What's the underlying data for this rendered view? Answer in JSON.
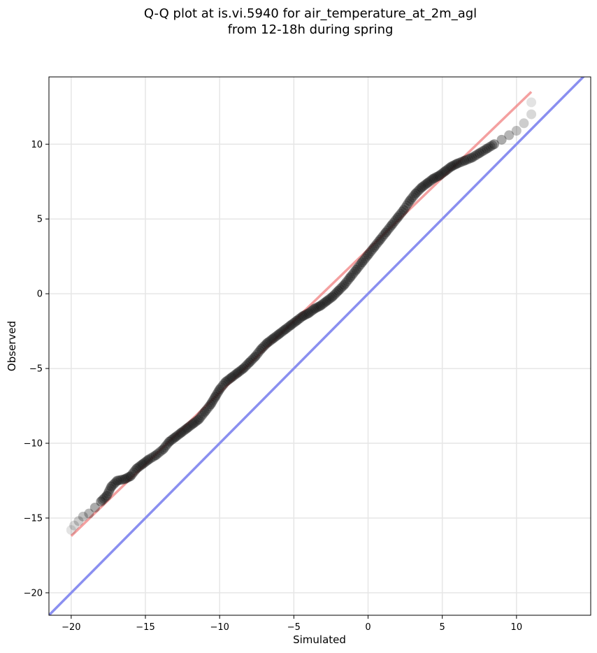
{
  "chart_data": {
    "type": "scatter",
    "title": "Q-Q plot at is.vi.5940 for air_temperature_at_2m_agl\nfrom 12-18h during spring",
    "title_lines": [
      "Q-Q plot at is.vi.5940 for air_temperature_at_2m_agl",
      "from 12-18h during spring"
    ],
    "xlabel": "Simulated",
    "ylabel": "Observed",
    "xlim": [
      -21.5,
      15
    ],
    "ylim": [
      -21.5,
      14.5
    ],
    "xticks": [
      -20,
      -15,
      -10,
      -5,
      0,
      5,
      10
    ],
    "yticks": [
      -20,
      -15,
      -10,
      -5,
      0,
      5,
      10
    ],
    "xtick_labels": [
      "−20",
      "−15",
      "−10",
      "−5",
      "0",
      "5",
      "10"
    ],
    "ytick_labels": [
      "−20",
      "−15",
      "−10",
      "−5",
      "0",
      "5",
      "10"
    ],
    "grid": true,
    "legend": "none",
    "quantile_points": [
      [
        -20.0,
        -15.8
      ],
      [
        -19.8,
        -15.5
      ],
      [
        -19.5,
        -15.2
      ],
      [
        -19.2,
        -14.9
      ],
      [
        -18.8,
        -14.7
      ],
      [
        -18.4,
        -14.3
      ],
      [
        -18.0,
        -13.9
      ],
      [
        -17.6,
        -13.5
      ],
      [
        -17.3,
        -12.9
      ],
      [
        -16.9,
        -12.5
      ],
      [
        -16.4,
        -12.4
      ],
      [
        -16.0,
        -12.2
      ],
      [
        -15.6,
        -11.7
      ],
      [
        -15.2,
        -11.4
      ],
      [
        -14.8,
        -11.1
      ],
      [
        -14.3,
        -10.8
      ],
      [
        -13.8,
        -10.4
      ],
      [
        -13.4,
        -9.9
      ],
      [
        -13.0,
        -9.6
      ],
      [
        -12.6,
        -9.3
      ],
      [
        -12.2,
        -9.0
      ],
      [
        -11.8,
        -8.7
      ],
      [
        -11.4,
        -8.4
      ],
      [
        -11.0,
        -7.9
      ],
      [
        -10.6,
        -7.4
      ],
      [
        -10.3,
        -6.9
      ],
      [
        -10.0,
        -6.4
      ],
      [
        -9.6,
        -5.9
      ],
      [
        -9.2,
        -5.6
      ],
      [
        -8.8,
        -5.3
      ],
      [
        -8.4,
        -5.0
      ],
      [
        -8.0,
        -4.6
      ],
      [
        -7.6,
        -4.2
      ],
      [
        -7.2,
        -3.7
      ],
      [
        -6.8,
        -3.3
      ],
      [
        -6.4,
        -3.0
      ],
      [
        -6.0,
        -2.7
      ],
      [
        -5.6,
        -2.4
      ],
      [
        -5.2,
        -2.1
      ],
      [
        -4.8,
        -1.8
      ],
      [
        -4.4,
        -1.5
      ],
      [
        -4.0,
        -1.3
      ],
      [
        -3.6,
        -1.0
      ],
      [
        -3.2,
        -0.8
      ],
      [
        -2.8,
        -0.5
      ],
      [
        -2.4,
        -0.2
      ],
      [
        -2.0,
        0.2
      ],
      [
        -1.6,
        0.6
      ],
      [
        -1.2,
        1.1
      ],
      [
        -0.8,
        1.6
      ],
      [
        -0.4,
        2.1
      ],
      [
        0.0,
        2.6
      ],
      [
        0.4,
        3.1
      ],
      [
        0.8,
        3.6
      ],
      [
        1.2,
        4.1
      ],
      [
        1.6,
        4.6
      ],
      [
        2.0,
        5.1
      ],
      [
        2.4,
        5.6
      ],
      [
        2.8,
        6.2
      ],
      [
        3.2,
        6.7
      ],
      [
        3.6,
        7.1
      ],
      [
        4.0,
        7.4
      ],
      [
        4.4,
        7.7
      ],
      [
        4.8,
        7.9
      ],
      [
        5.2,
        8.2
      ],
      [
        5.6,
        8.5
      ],
      [
        6.0,
        8.7
      ],
      [
        6.5,
        8.9
      ],
      [
        7.0,
        9.1
      ],
      [
        7.5,
        9.4
      ],
      [
        8.0,
        9.7
      ],
      [
        8.5,
        10.0
      ],
      [
        9.0,
        10.3
      ],
      [
        9.5,
        10.6
      ],
      [
        10.0,
        10.9
      ],
      [
        10.5,
        11.4
      ],
      [
        11.0,
        12.0
      ],
      [
        11.0,
        12.8
      ]
    ],
    "fit_line": {
      "x": [
        -20.0,
        11.0
      ],
      "y": [
        -16.2,
        13.5
      ],
      "color": "#f08080"
    },
    "identity_line": {
      "x": [
        -21.5,
        15.0
      ],
      "y": [
        -21.5,
        15.0
      ],
      "color": "#8a8ff0"
    },
    "colors": {
      "points": "#1a1a1a",
      "fit": "#f08080",
      "identity": "#8a8ff0",
      "grid": "#e6e6e6"
    }
  }
}
